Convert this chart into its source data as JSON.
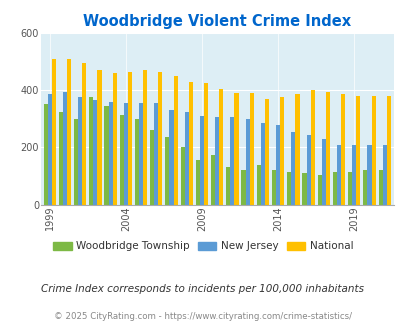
{
  "title": "Woodbridge Violent Crime Index",
  "title_color": "#0066cc",
  "years": [
    1999,
    2000,
    2001,
    2002,
    2003,
    2004,
    2005,
    2006,
    2007,
    2008,
    2009,
    2010,
    2011,
    2012,
    2013,
    2014,
    2015,
    2016,
    2017,
    2018,
    2019,
    2020,
    2021
  ],
  "woodbridge": [
    350,
    325,
    300,
    375,
    345,
    315,
    300,
    260,
    235,
    200,
    155,
    175,
    130,
    120,
    140,
    120,
    115,
    110,
    105,
    115,
    115,
    120,
    120
  ],
  "new_jersey": [
    385,
    395,
    375,
    365,
    360,
    355,
    355,
    355,
    330,
    325,
    310,
    305,
    305,
    300,
    285,
    280,
    255,
    245,
    230,
    210,
    210,
    210,
    210
  ],
  "national": [
    510,
    510,
    495,
    470,
    460,
    465,
    470,
    465,
    450,
    430,
    425,
    405,
    390,
    390,
    370,
    375,
    385,
    400,
    395,
    385,
    380,
    380,
    380
  ],
  "woodbridge_color": "#7db945",
  "nj_color": "#5b9bd5",
  "national_color": "#ffc000",
  "bg_color": "#ddeef5",
  "ylim": [
    0,
    600
  ],
  "yticks": [
    0,
    200,
    400,
    600
  ],
  "tick_years": [
    1999,
    2004,
    2009,
    2014,
    2019
  ],
  "footnote1": "Crime Index corresponds to incidents per 100,000 inhabitants",
  "footnote2": "© 2025 CityRating.com - https://www.cityrating.com/crime-statistics/",
  "legend_labels": [
    "Woodbridge Township",
    "New Jersey",
    "National"
  ]
}
